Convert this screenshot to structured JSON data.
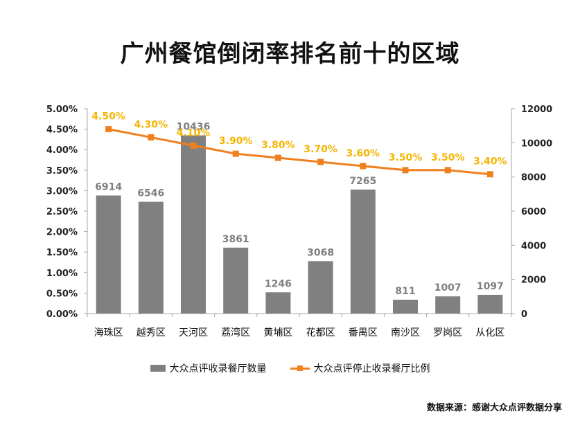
{
  "chart_data": {
    "type": "bar+line",
    "title": "广州餐馆倒闭率排名前十的区域",
    "categories": [
      "海珠区",
      "越秀区",
      "天河区",
      "荔湾区",
      "黄埔区",
      "花都区",
      "番禺区",
      "南沙区",
      "罗岗区",
      "从化区"
    ],
    "series": [
      {
        "name": "大众点评收录餐厅数量",
        "type": "bar",
        "axis": "right",
        "values": [
          6914,
          6546,
          10436,
          3861,
          1246,
          3068,
          7265,
          811,
          1007,
          1097
        ],
        "labels": [
          "6914",
          "6546",
          "10436",
          "3861",
          "1246",
          "3068",
          "7265",
          "811",
          "1007",
          "1097"
        ],
        "color": "#808080"
      },
      {
        "name": "大众点评停止收录餐厅比例",
        "type": "line",
        "axis": "left",
        "values": [
          4.5,
          4.3,
          4.1,
          3.9,
          3.8,
          3.7,
          3.6,
          3.5,
          3.5,
          3.4
        ],
        "labels": [
          "4.50%",
          "4.30%",
          "4.10%",
          "3.90%",
          "3.80%",
          "3.70%",
          "3.60%",
          "3.50%",
          "3.50%",
          "3.40%"
        ],
        "color": "#f07f1e",
        "label_color": "#f5b400"
      }
    ],
    "left_axis": {
      "ylim": [
        0,
        5
      ],
      "ticks": [
        0,
        0.5,
        1,
        1.5,
        2,
        2.5,
        3,
        3.5,
        4,
        4.5,
        5
      ],
      "tick_labels": [
        "0.00%",
        "0.50%",
        "1.00%",
        "1.50%",
        "2.00%",
        "2.50%",
        "3.00%",
        "3.50%",
        "4.00%",
        "4.50%",
        "5.00%"
      ]
    },
    "right_axis": {
      "ylim": [
        0,
        12000
      ],
      "ticks": [
        0,
        2000,
        4000,
        6000,
        8000,
        10000,
        12000
      ],
      "tick_labels": [
        "0",
        "2000",
        "4000",
        "6000",
        "8000",
        "10000",
        "12000"
      ]
    },
    "legend_position": "bottom",
    "grid": false
  },
  "source_note": "数据来源：感谢大众点评数据分享"
}
